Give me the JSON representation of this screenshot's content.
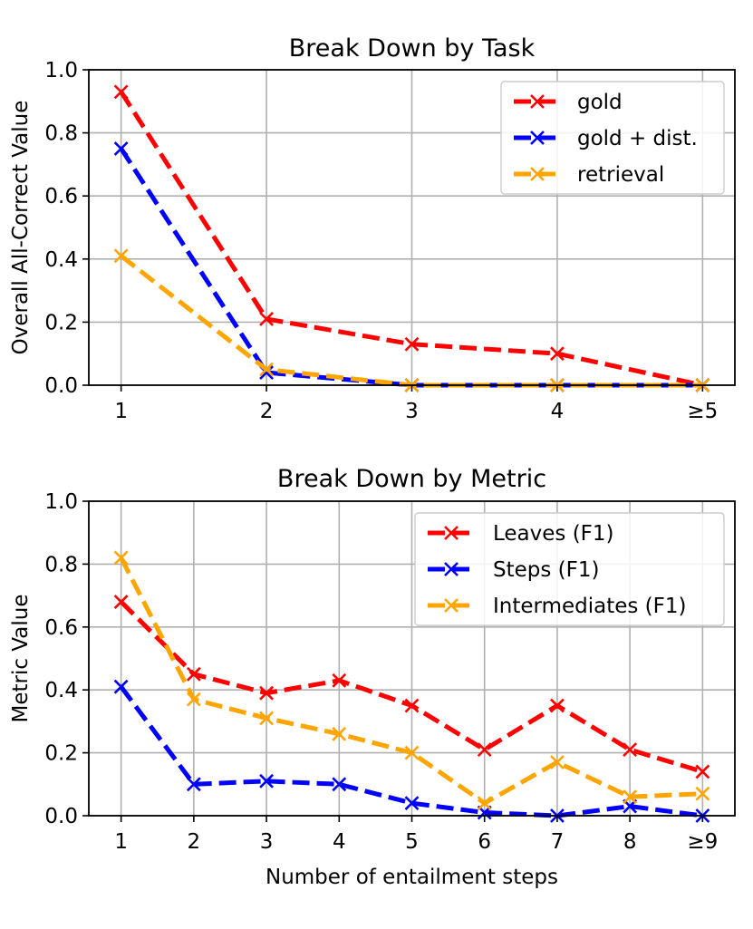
{
  "chart_data": [
    {
      "type": "line",
      "title": "Break Down by Task",
      "xlabel": "",
      "ylabel": "Overall All-Correct Value",
      "categories": [
        "1",
        "2",
        "3",
        "4",
        "≥5"
      ],
      "ylim": [
        0,
        1.0
      ],
      "yticks": [
        "0.0",
        "0.2",
        "0.4",
        "0.6",
        "0.8",
        "1.0"
      ],
      "grid": true,
      "legend_position": "top-right",
      "series": [
        {
          "name": "gold",
          "color": "#ff0000",
          "values": [
            0.93,
            0.21,
            0.13,
            0.1,
            0.0
          ]
        },
        {
          "name": "gold + dist.",
          "color": "#0000ff",
          "values": [
            0.75,
            0.04,
            0.0,
            0.0,
            0.0
          ]
        },
        {
          "name": "retrieval",
          "color": "#ffa500",
          "values": [
            0.41,
            0.05,
            0.0,
            0.0,
            0.0
          ]
        }
      ]
    },
    {
      "type": "line",
      "title": "Break Down by Metric",
      "xlabel": "Number of entailment steps",
      "ylabel": "Metric Value",
      "categories": [
        "1",
        "2",
        "3",
        "4",
        "5",
        "6",
        "7",
        "8",
        "≥9"
      ],
      "ylim": [
        0,
        1.0
      ],
      "yticks": [
        "0.0",
        "0.2",
        "0.4",
        "0.6",
        "0.8",
        "1.0"
      ],
      "grid": true,
      "legend_position": "top-right",
      "series": [
        {
          "name": "Leaves (F1)",
          "color": "#ff0000",
          "values": [
            0.68,
            0.45,
            0.39,
            0.43,
            0.35,
            0.21,
            0.35,
            0.21,
            0.14
          ]
        },
        {
          "name": "Steps (F1)",
          "color": "#0000ff",
          "values": [
            0.41,
            0.1,
            0.11,
            0.1,
            0.04,
            0.01,
            0.0,
            0.03,
            0.0
          ]
        },
        {
          "name": "Intermediates (F1)",
          "color": "#ffa500",
          "values": [
            0.82,
            0.37,
            0.31,
            0.26,
            0.2,
            0.04,
            0.17,
            0.06,
            0.07
          ]
        }
      ]
    }
  ]
}
